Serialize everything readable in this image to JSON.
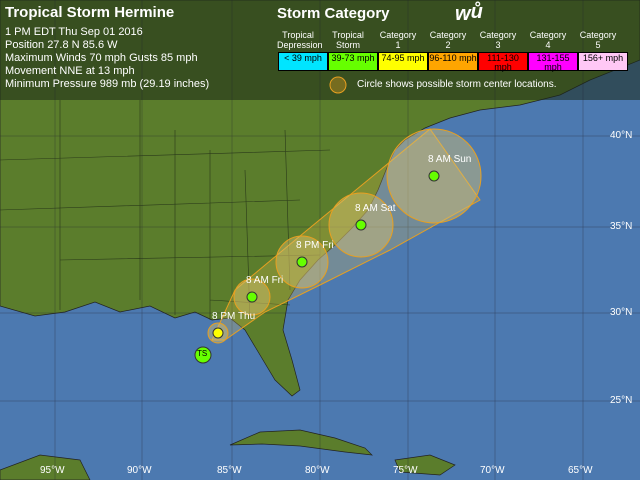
{
  "info": {
    "title": "Tropical Storm Hermine",
    "time": "1 PM EDT Thu Sep 01 2016",
    "position": "Position 27.8 N 85.6 W",
    "winds": "Maximum Winds 70 mph  Gusts 85 mph",
    "movement": "Movement NNE at 13 mph",
    "pressure": "Minimum Pressure 989 mb (29.19 inches)"
  },
  "legend": {
    "title": "Storm Category",
    "logo": "wu",
    "note": "Circle shows possible storm center locations.",
    "categories": [
      {
        "name": "Tropical Depression",
        "range": "< 39 mph",
        "color": "#00e5ff"
      },
      {
        "name": "Tropical Storm",
        "range": "39-73 mph",
        "color": "#66ff00"
      },
      {
        "name": "Category 1",
        "range": "74-95 mph",
        "color": "#ffff00"
      },
      {
        "name": "Category 2",
        "range": "96-110 mph",
        "color": "#ffa500"
      },
      {
        "name": "Category 3",
        "range": "111-130 mph",
        "color": "#ff0000"
      },
      {
        "name": "Category 4",
        "range": "131-155 mph",
        "color": "#ff00ff"
      },
      {
        "name": "Category 5",
        "range": "156+ mph",
        "color": "#ffc8f5"
      }
    ]
  },
  "current": {
    "badge": "TS"
  },
  "forecast": [
    {
      "label": "8 PM Thu"
    },
    {
      "label": "8 AM Fri"
    },
    {
      "label": "8 PM Fri"
    },
    {
      "label": "8 AM Sat"
    },
    {
      "label": "8 AM Sun"
    }
  ],
  "lon_ticks": [
    "95°W",
    "90°W",
    "85°W",
    "80°W",
    "75°W",
    "70°W",
    "65°W"
  ],
  "lat_ticks": [
    "40°N",
    "35°N",
    "30°N",
    "25°N"
  ]
}
